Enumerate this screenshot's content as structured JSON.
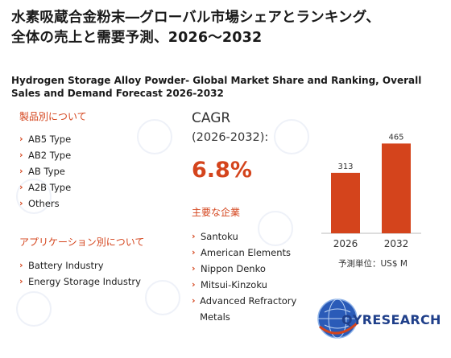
{
  "title_jp_line1": "水素吸蔵合金粉末―グローバル市場シェアとランキング、",
  "title_jp_line2": "全体の売上と需要予測、2026～2032",
  "title_en": "Hydrogen Storage Alloy Powder- Global Market Share and Ranking, Overall Sales and Demand Forecast 2026-2032",
  "product_section": {
    "heading": "製品別について",
    "items": [
      "AB5 Type",
      "AB2 Type",
      "AB Type",
      "A2B Type",
      "Others"
    ]
  },
  "application_section": {
    "heading": "アプリケーション別について",
    "items": [
      "Battery Industry",
      "Energy Storage Industry"
    ]
  },
  "cagr": {
    "label": "CAGR",
    "period": "(2026-2032):",
    "value": "6.8%"
  },
  "companies_section": {
    "heading": "主要な企業",
    "items": [
      "Santoku",
      "American Elements",
      "Nippon Denko",
      "Mitsui-Kinzoku",
      "Advanced Refractory Metals"
    ]
  },
  "chart_data": {
    "type": "bar",
    "categories": [
      "2026",
      "2032"
    ],
    "values": [
      313,
      465
    ],
    "value_labels": [
      "313",
      "465"
    ],
    "ylim": [
      0,
      500
    ],
    "bar_color": "#d4441c",
    "unit_note": "予測単位：US$ M"
  },
  "logo": {
    "text": "QYRESEARCH",
    "icon": "globe-icon",
    "brand_color": "#1f3f8a",
    "accent_color": "#d4441c"
  }
}
